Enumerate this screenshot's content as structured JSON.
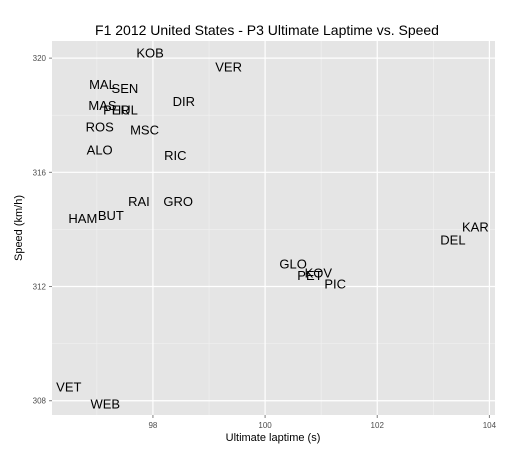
{
  "chart_data": {
    "type": "scatter",
    "title": "F1  2012 United States - P3 Ultimate Laptime vs. Speed",
    "xlabel": "Ultimate laptime (s)",
    "ylabel": "Speed (km/h)",
    "xlim": [
      96.2,
      104.1
    ],
    "ylim": [
      307.5,
      320.6
    ],
    "xticks": [
      98,
      100,
      102,
      104
    ],
    "yticks": [
      308,
      312,
      316,
      320
    ],
    "grid": true,
    "legend": "none",
    "colors": {
      "panel": "#e5e5e5",
      "grid_major": "#ffffff",
      "grid_minor": "#f2f2f2",
      "text": "#000000",
      "ticks": "#4d4d4d"
    },
    "points": [
      {
        "label": "KOB",
        "x": 97.95,
        "y": 320.2
      },
      {
        "label": "VER",
        "x": 99.35,
        "y": 319.7
      },
      {
        "label": "MAL",
        "x": 97.1,
        "y": 319.1
      },
      {
        "label": "SEN",
        "x": 97.5,
        "y": 318.95
      },
      {
        "label": "DIR",
        "x": 98.55,
        "y": 318.5
      },
      {
        "label": "MAS",
        "x": 97.1,
        "y": 318.35
      },
      {
        "label": "PER",
        "x": 97.35,
        "y": 318.2
      },
      {
        "label": "HUL",
        "x": 97.5,
        "y": 318.2
      },
      {
        "label": "ROS",
        "x": 97.05,
        "y": 317.6
      },
      {
        "label": "MSC",
        "x": 97.85,
        "y": 317.5
      },
      {
        "label": "ALO",
        "x": 97.05,
        "y": 316.8
      },
      {
        "label": "RIC",
        "x": 98.4,
        "y": 316.6
      },
      {
        "label": "RAI",
        "x": 97.75,
        "y": 315.0
      },
      {
        "label": "GRO",
        "x": 98.45,
        "y": 315.0
      },
      {
        "label": "HAM",
        "x": 96.75,
        "y": 314.4
      },
      {
        "label": "BUT",
        "x": 97.25,
        "y": 314.5
      },
      {
        "label": "KAR",
        "x": 103.75,
        "y": 314.1
      },
      {
        "label": "DEL",
        "x": 103.35,
        "y": 313.65
      },
      {
        "label": "GLO",
        "x": 100.5,
        "y": 312.8
      },
      {
        "label": "KOV",
        "x": 100.95,
        "y": 312.5
      },
      {
        "label": "PET",
        "x": 100.8,
        "y": 312.4
      },
      {
        "label": "PIC",
        "x": 101.25,
        "y": 312.1
      },
      {
        "label": "VET",
        "x": 96.5,
        "y": 308.5
      },
      {
        "label": "WEB",
        "x": 97.15,
        "y": 307.9
      }
    ]
  }
}
